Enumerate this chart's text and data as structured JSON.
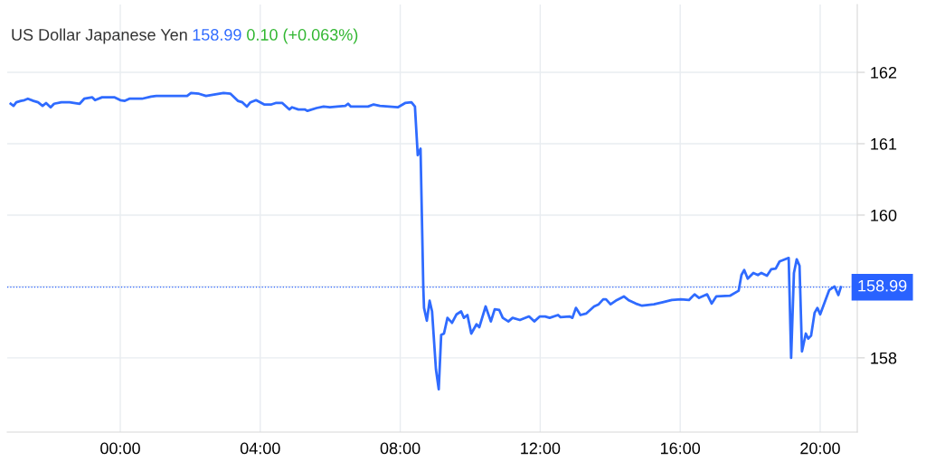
{
  "chart_data": {
    "type": "line",
    "title": "US Dollar Japanese Yen",
    "annotations": [
      "158.99",
      "0.10 (+0.063%)"
    ],
    "xlim": [
      -3.23,
      21.06
    ],
    "ylim": [
      156.96,
      162.95
    ],
    "xticks": [
      {
        "value": 0,
        "label": "00:00"
      },
      {
        "value": 4,
        "label": "04:00"
      },
      {
        "value": 8,
        "label": "08:00"
      },
      {
        "value": 12,
        "label": "12:00"
      },
      {
        "value": 16,
        "label": "16:00"
      },
      {
        "value": 20,
        "label": "20:00"
      }
    ],
    "yticks": [
      158,
      {
        "value": 159,
        "label": null
      },
      160,
      161,
      162
    ],
    "grid": true,
    "marker": "none",
    "line_style": "solid",
    "ref_lines": [
      {
        "axis": "y",
        "value": 158.99,
        "label": "158.99",
        "color": "#2962ff",
        "line_style": "dotted"
      }
    ],
    "series": [
      {
        "color": "#2f6bff",
        "x": [
          -3.13,
          -3.05,
          -2.97,
          -2.84,
          -2.74,
          -2.64,
          -2.48,
          -2.35,
          -2.22,
          -2.12,
          -1.99,
          -1.89,
          -1.68,
          -1.45,
          -1.16,
          -1.03,
          -0.8,
          -0.72,
          -0.52,
          -0.16,
          0.0,
          0.13,
          0.26,
          0.62,
          0.88,
          1.03,
          1.55,
          1.91,
          2.02,
          2.25,
          2.45,
          2.95,
          3.15,
          3.36,
          3.49,
          3.62,
          3.72,
          3.88,
          4.11,
          4.32,
          4.44,
          4.63,
          4.83,
          4.91,
          5.09,
          5.27,
          5.35,
          5.61,
          5.81,
          5.99,
          6.2,
          6.43,
          6.51,
          6.59,
          7.08,
          7.24,
          7.42,
          7.93,
          8.14,
          8.32,
          8.42,
          8.5,
          8.58,
          8.66,
          8.68,
          8.76,
          8.84,
          8.91,
          9.02,
          9.1,
          9.17,
          9.25,
          9.35,
          9.48,
          9.61,
          9.74,
          9.82,
          9.92,
          10.03,
          10.18,
          10.26,
          10.44,
          10.59,
          10.7,
          10.83,
          10.93,
          11.09,
          11.21,
          11.42,
          11.68,
          11.83,
          11.99,
          12.14,
          12.27,
          12.51,
          12.58,
          12.84,
          12.92,
          13.02,
          13.15,
          13.31,
          13.54,
          13.67,
          13.8,
          13.88,
          14.01,
          14.19,
          14.39,
          14.52,
          14.73,
          14.91,
          15.25,
          15.5,
          15.76,
          16.02,
          16.25,
          16.41,
          16.54,
          16.77,
          16.9,
          17.03,
          17.42,
          17.67,
          17.75,
          17.83,
          17.93,
          18.09,
          18.22,
          18.32,
          18.48,
          18.6,
          18.73,
          18.84,
          19.1,
          19.17,
          19.25,
          19.33,
          19.41,
          19.48,
          19.59,
          19.66,
          19.74,
          19.84,
          19.92,
          20.0,
          20.26,
          20.41,
          20.52,
          20.59
        ],
        "values": [
          161.56,
          161.53,
          161.58,
          161.6,
          161.61,
          161.63,
          161.6,
          161.58,
          161.53,
          161.57,
          161.51,
          161.56,
          161.58,
          161.58,
          161.56,
          161.63,
          161.65,
          161.61,
          161.65,
          161.65,
          161.61,
          161.6,
          161.63,
          161.63,
          161.66,
          161.67,
          161.67,
          161.67,
          161.71,
          161.7,
          161.67,
          161.71,
          161.7,
          161.6,
          161.58,
          161.52,
          161.58,
          161.61,
          161.55,
          161.55,
          161.57,
          161.57,
          161.48,
          161.51,
          161.48,
          161.48,
          161.46,
          161.5,
          161.52,
          161.51,
          161.52,
          161.53,
          161.56,
          161.52,
          161.52,
          161.55,
          161.53,
          161.51,
          161.57,
          161.58,
          161.52,
          160.84,
          160.93,
          158.97,
          158.7,
          158.52,
          158.8,
          158.65,
          157.84,
          157.56,
          158.32,
          158.34,
          158.56,
          158.49,
          158.61,
          158.65,
          158.56,
          158.6,
          158.34,
          158.47,
          158.43,
          158.72,
          158.51,
          158.68,
          158.67,
          158.56,
          158.51,
          158.56,
          158.53,
          158.58,
          158.51,
          158.58,
          158.58,
          158.56,
          158.6,
          158.57,
          158.58,
          158.56,
          158.7,
          158.6,
          158.62,
          158.72,
          158.75,
          158.82,
          158.82,
          158.75,
          158.81,
          158.86,
          158.81,
          158.76,
          158.73,
          158.75,
          158.78,
          158.81,
          158.82,
          158.81,
          158.89,
          158.84,
          158.89,
          158.76,
          158.86,
          158.87,
          158.94,
          159.16,
          159.23,
          159.11,
          159.19,
          159.16,
          159.19,
          159.15,
          159.24,
          159.25,
          159.35,
          159.4,
          158.0,
          159.19,
          159.38,
          159.29,
          158.09,
          158.34,
          158.27,
          158.31,
          158.63,
          158.7,
          158.61,
          158.95,
          159.0,
          158.88,
          158.99
        ]
      }
    ]
  }
}
